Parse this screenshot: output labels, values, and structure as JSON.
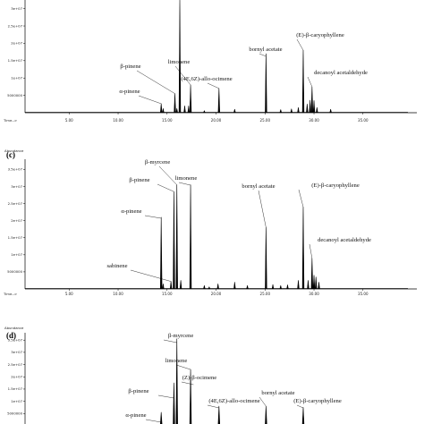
{
  "chart_data": [
    {
      "type": "line",
      "panel_label": "",
      "ylabel": "",
      "y_ticks": [
        "5000000",
        "1e+07",
        "1.5e+07",
        "2e+07",
        "2.5e+07",
        "3e+07"
      ],
      "x_prefix": "Time-->",
      "x_ticks": [
        "5.00",
        "10.00",
        "15.00",
        "20.00",
        "25.00",
        "30.00",
        "35.00"
      ],
      "xlim": [
        0.5,
        40.5
      ],
      "ylim": [
        0,
        33000000
      ],
      "peaks": [
        {
          "x": 14.4,
          "y": 2600000
        },
        {
          "x": 14.6,
          "y": 1200000
        },
        {
          "x": 15.8,
          "y": 5500000
        },
        {
          "x": 16.0,
          "y": 1200000
        },
        {
          "x": 16.3,
          "y": 34500000
        },
        {
          "x": 16.8,
          "y": 2000000
        },
        {
          "x": 17.2,
          "y": 2000000
        },
        {
          "x": 17.4,
          "y": 8000000
        },
        {
          "x": 18.8,
          "y": 600000
        },
        {
          "x": 20.3,
          "y": 7000000
        },
        {
          "x": 21.9,
          "y": 1000000
        },
        {
          "x": 25.1,
          "y": 17000000
        },
        {
          "x": 26.6,
          "y": 900000
        },
        {
          "x": 27.7,
          "y": 1100000
        },
        {
          "x": 28.4,
          "y": 1500000
        },
        {
          "x": 28.9,
          "y": 18000000
        },
        {
          "x": 29.3,
          "y": 2500000
        },
        {
          "x": 29.6,
          "y": 3600000
        },
        {
          "x": 29.8,
          "y": 7500000
        },
        {
          "x": 30.0,
          "y": 3500000
        },
        {
          "x": 30.3,
          "y": 1500000
        },
        {
          "x": 31.7,
          "y": 1000000
        }
      ],
      "annotations": [
        {
          "label": "β-pinene",
          "peak_x": 15.8
        },
        {
          "label": "α-pinene",
          "peak_x": 14.4
        },
        {
          "label": "limonene",
          "peak_x": 17.4
        },
        {
          "label": "(4E,6Z)-allo-ocimene",
          "peak_x": 20.3
        },
        {
          "label": "bornyl acetate",
          "peak_x": 25.1
        },
        {
          "label": "(E)-β-caryophyllene",
          "peak_x": 28.9
        },
        {
          "label": "decanoyl acetaldehyde",
          "peak_x": 29.8
        }
      ]
    },
    {
      "type": "line",
      "panel_label": "(c)",
      "ylabel": "Abundance",
      "y_ticks": [
        "5000000",
        "1e+07",
        "1.5e+07",
        "2e+07",
        "2.5e+07",
        "3e+07",
        "3.5e+07"
      ],
      "x_prefix": "Time-->",
      "x_ticks": [
        "5.00",
        "10.00",
        "15.00",
        "20.00",
        "25.00",
        "30.00",
        "35.00"
      ],
      "xlim": [
        0.5,
        40.5
      ],
      "ylim": [
        0,
        38000000
      ],
      "peaks": [
        {
          "x": 14.4,
          "y": 21000000
        },
        {
          "x": 14.6,
          "y": 1500000
        },
        {
          "x": 15.4,
          "y": 2200000
        },
        {
          "x": 15.7,
          "y": 28500000
        },
        {
          "x": 16.0,
          "y": 30500000
        },
        {
          "x": 16.4,
          "y": 2500000
        },
        {
          "x": 17.4,
          "y": 30500000
        },
        {
          "x": 18.8,
          "y": 1000000
        },
        {
          "x": 19.3,
          "y": 600000
        },
        {
          "x": 20.2,
          "y": 1500000
        },
        {
          "x": 21.9,
          "y": 2000000
        },
        {
          "x": 23.2,
          "y": 1000000
        },
        {
          "x": 25.1,
          "y": 18000000
        },
        {
          "x": 25.8,
          "y": 1300000
        },
        {
          "x": 26.6,
          "y": 1000000
        },
        {
          "x": 27.3,
          "y": 1200000
        },
        {
          "x": 28.4,
          "y": 2500000
        },
        {
          "x": 28.9,
          "y": 24000000
        },
        {
          "x": 29.4,
          "y": 2500000
        },
        {
          "x": 29.8,
          "y": 9000000
        },
        {
          "x": 30.0,
          "y": 4000000
        },
        {
          "x": 30.2,
          "y": 3500000
        },
        {
          "x": 30.5,
          "y": 2000000
        }
      ],
      "annotations": [
        {
          "label": "β-myrcene",
          "peak_x": 16.0
        },
        {
          "label": "β-pinene",
          "peak_x": 15.7
        },
        {
          "label": "limonene",
          "peak_x": 17.4
        },
        {
          "label": "α-pinene",
          "peak_x": 14.4
        },
        {
          "label": "sabinene",
          "peak_x": 15.4
        },
        {
          "label": "bornyl acetate",
          "peak_x": 25.1
        },
        {
          "label": "(E)-β-caryophyllene",
          "peak_x": 28.9
        },
        {
          "label": "decanoyl acetaldehyde",
          "peak_x": 29.8
        }
      ]
    },
    {
      "type": "line",
      "panel_label": "(d)",
      "ylabel": "Abundance",
      "y_ticks": [
        "5000000",
        "1e+07",
        "1.5e+07",
        "2e+07",
        "2.5e+07",
        "3e+07",
        "3.5e+07"
      ],
      "x_prefix": "",
      "x_ticks": [],
      "xlim": [
        0.5,
        40.5
      ],
      "ylim": [
        0,
        38000000
      ],
      "peaks": [
        {
          "x": 14.4,
          "y": 5500000
        },
        {
          "x": 15.7,
          "y": 17500000
        },
        {
          "x": 16.0,
          "y": 35500000
        },
        {
          "x": 17.4,
          "y": 23000000
        },
        {
          "x": 20.3,
          "y": 8000000
        },
        {
          "x": 25.1,
          "y": 8000000
        },
        {
          "x": 28.9,
          "y": 7500000
        }
      ],
      "annotations": [
        {
          "label": "β-myrcene",
          "peak_x": 16.0
        },
        {
          "label": "limonene",
          "peak_x": 17.4
        },
        {
          "label": "(Z)-β-ocimene",
          "peak_x": 17.7
        },
        {
          "label": "β-pinene",
          "peak_x": 15.7
        },
        {
          "label": "(4E,6Z)-allo-ocimene",
          "peak_x": 20.3
        },
        {
          "label": "bornyl acetate",
          "peak_x": 25.1
        },
        {
          "label": "(E)-β-caryophyllene",
          "peak_x": 28.9
        },
        {
          "label": "α-pinene",
          "peak_x": 14.4
        }
      ]
    }
  ]
}
